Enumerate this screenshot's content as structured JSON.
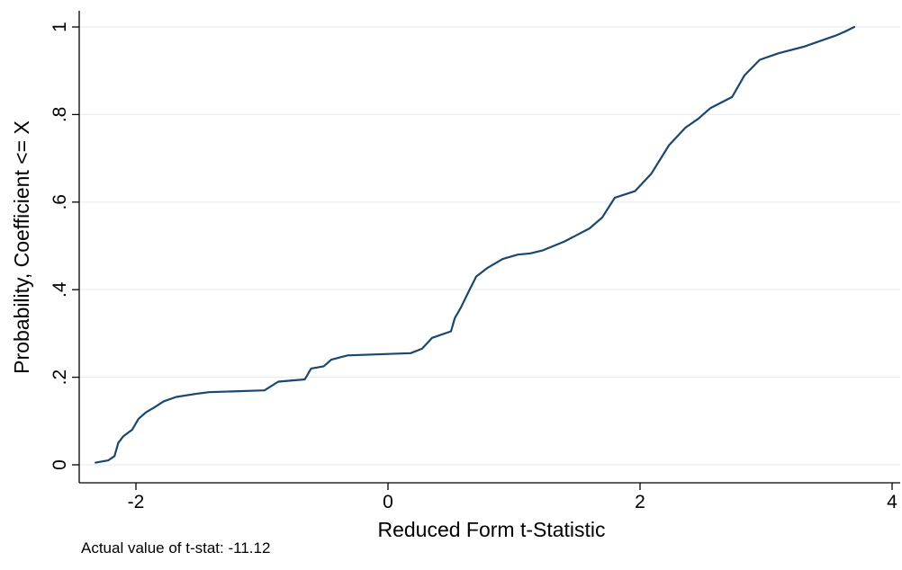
{
  "chart_data": {
    "type": "line",
    "title": "",
    "xlabel": "Reduced Form t-Statistic",
    "ylabel": "Probability, Coefficient <= X",
    "xlim": [
      -2.4,
      4.0
    ],
    "ylim": [
      0,
      1
    ],
    "x_ticks": [
      -2,
      0,
      2,
      4
    ],
    "x_tick_labels": [
      "-2",
      "0",
      "2",
      "4"
    ],
    "y_ticks": [
      0,
      0.2,
      0.4,
      0.6,
      0.8,
      1
    ],
    "y_tick_labels": [
      "0",
      ".2",
      ".4",
      ".6",
      ".8",
      "1"
    ],
    "grid": "horizontal",
    "legend": "none",
    "line_color": "#1a476f",
    "grid_color": "#e8eef2",
    "series": [
      {
        "x": [
          -2.32,
          -2.22,
          -2.17,
          -2.14,
          -2.1,
          -2.03,
          -1.98,
          -1.92,
          -1.86,
          -1.78,
          -1.68,
          -1.5,
          -1.42,
          -0.98,
          -0.87,
          -0.66,
          -0.61,
          -0.51,
          -0.45,
          -0.32,
          0.18,
          0.27,
          0.35,
          0.5,
          0.53,
          0.58,
          0.63,
          0.7,
          0.79,
          0.91,
          1.03,
          1.13,
          1.23,
          1.4,
          1.5,
          1.6,
          1.7,
          1.8,
          1.96,
          2.09,
          2.23,
          2.36,
          2.46,
          2.56,
          2.73,
          2.83,
          2.95,
          3.1,
          3.3,
          3.45,
          3.55,
          3.63,
          3.7
        ],
        "y": [
          0.005,
          0.01,
          0.02,
          0.05,
          0.065,
          0.08,
          0.105,
          0.12,
          0.13,
          0.145,
          0.155,
          0.163,
          0.166,
          0.17,
          0.19,
          0.195,
          0.22,
          0.225,
          0.24,
          0.25,
          0.255,
          0.265,
          0.29,
          0.305,
          0.335,
          0.36,
          0.39,
          0.43,
          0.45,
          0.47,
          0.48,
          0.483,
          0.49,
          0.51,
          0.525,
          0.54,
          0.565,
          0.61,
          0.625,
          0.665,
          0.73,
          0.77,
          0.79,
          0.815,
          0.84,
          0.89,
          0.925,
          0.94,
          0.955,
          0.97,
          0.98,
          0.99,
          1.0
        ]
      }
    ]
  },
  "note": "Actual value of t-stat: -11.12"
}
